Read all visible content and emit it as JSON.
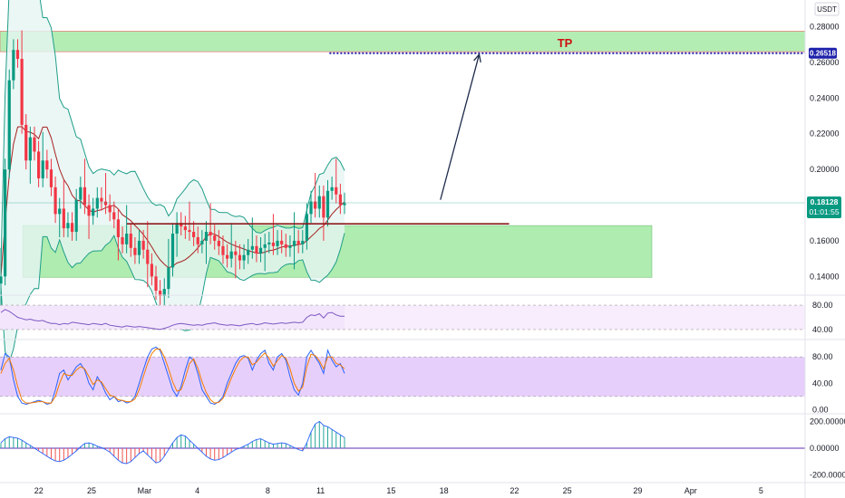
{
  "header": {
    "currency_badge": "USDT"
  },
  "price_tag": {
    "value": "0.18128",
    "countdown": "01:01:55",
    "color": "#089981"
  },
  "tp_tag": {
    "value": "0.26518",
    "color": "#1e22aa"
  },
  "annotations": {
    "tp_label": "TP",
    "tp_color": "#cc1111"
  },
  "colors": {
    "up": "#089981",
    "down": "#f23645",
    "zone_fill": "#9be79b",
    "bb_fill": "#e6f5f3",
    "bb_line": "#1f9e89",
    "ma_line": "#a52222",
    "rsi_line": "#7e57c2",
    "rsi_band": "#f3e6fc",
    "stoch_k": "#2962ff",
    "stoch_d": "#f57c00",
    "stoch_band": "#e3c7fa",
    "hist_up": "#26a69a",
    "hist_down": "#ef5350"
  },
  "time_axis": {
    "ticks": [
      {
        "label": "22",
        "day": 22
      },
      {
        "label": "25",
        "day": 25
      },
      {
        "label": "Mar",
        "day": 28
      },
      {
        "label": "4",
        "day": 31
      },
      {
        "label": "8",
        "day": 35
      },
      {
        "label": "11",
        "day": 38
      },
      {
        "label": "15",
        "day": 42
      },
      {
        "label": "18",
        "day": 45
      },
      {
        "label": "22",
        "day": 49
      },
      {
        "label": "25",
        "day": 52
      },
      {
        "label": "29",
        "day": 56
      },
      {
        "label": "Apr",
        "day": 59
      },
      {
        "label": "5",
        "day": 63
      }
    ]
  },
  "chart_data": [
    {
      "type": "candlestick",
      "pane": "price",
      "y_ticks": [
        "0.28000",
        "0.26000",
        "0.24000",
        "0.22000",
        "0.20000",
        "0.16000",
        "0.14000"
      ],
      "ylim": [
        0.13,
        0.295
      ],
      "x_range_days": [
        19.8,
        65.5
      ],
      "zones": [
        {
          "label": "TP",
          "from_day": 19.8,
          "to_day": 65.5,
          "low": 0.266,
          "high": 0.2775
        },
        {
          "label": "",
          "from_day": 21.1,
          "to_day": 56.8,
          "low": 0.1395,
          "high": 0.1685
        }
      ],
      "tp_level": 0.26518,
      "support_line": {
        "from_day": 27.0,
        "to_day": 48.7,
        "value": 0.1695
      },
      "arrow": {
        "from": {
          "day": 44.8,
          "value": 0.183
        },
        "to": {
          "day": 47.0,
          "value": 0.2645
        }
      },
      "closes": [
        0.14,
        0.2,
        0.25,
        0.267,
        0.262,
        0.225,
        0.205,
        0.218,
        0.21,
        0.195,
        0.205,
        0.2,
        0.19,
        0.175,
        0.178,
        0.167,
        0.17,
        0.165,
        0.183,
        0.19,
        0.18,
        0.174,
        0.178,
        0.184,
        0.182,
        0.18,
        0.176,
        0.172,
        0.162,
        0.158,
        0.164,
        0.156,
        0.152,
        0.16,
        0.155,
        0.147,
        0.14,
        0.132,
        0.129,
        0.133,
        0.145,
        0.164,
        0.17,
        0.168,
        0.166,
        0.165,
        0.162,
        0.158,
        0.16,
        0.165,
        0.163,
        0.16,
        0.157,
        0.152,
        0.15,
        0.154,
        0.152,
        0.149,
        0.152,
        0.155,
        0.157,
        0.153,
        0.156,
        0.158,
        0.159,
        0.157,
        0.16,
        0.158,
        0.156,
        0.157,
        0.16,
        0.158,
        0.16,
        0.175,
        0.182,
        0.178,
        0.185,
        0.173,
        0.188,
        0.19,
        0.186,
        0.18,
        0.181
      ],
      "price_line": 0.18128
    },
    {
      "type": "line",
      "pane": "rsi",
      "y_ticks": [
        "80.00",
        "40.00"
      ],
      "ylim": [
        25,
        95
      ],
      "band": [
        40,
        80
      ],
      "values": [
        68,
        73,
        70,
        65,
        60,
        58,
        56,
        57,
        55,
        54,
        55,
        52,
        50,
        50,
        48,
        50,
        49,
        52,
        51,
        50,
        49,
        48,
        50,
        49,
        48,
        50,
        47,
        46,
        45,
        44,
        46,
        45,
        44,
        45,
        44,
        43,
        42,
        41,
        40,
        42,
        44,
        47,
        49,
        50,
        49,
        48,
        47,
        48,
        47,
        49,
        50,
        51,
        49,
        48,
        47,
        48,
        47,
        46,
        48,
        49,
        50,
        48,
        49,
        51,
        50,
        49,
        50,
        51,
        50,
        51,
        52,
        51,
        52,
        60,
        64,
        63,
        66,
        59,
        67,
        68,
        64,
        62,
        62
      ]
    },
    {
      "type": "line",
      "pane": "stoch",
      "y_ticks": [
        "80.00",
        "40.00",
        "0.00"
      ],
      "ylim": [
        -5,
        105
      ],
      "band": [
        20,
        80
      ],
      "series": [
        {
          "name": "",
          "values": [
            60,
            85,
            80,
            45,
            20,
            10,
            8,
            10,
            12,
            14,
            12,
            8,
            10,
            30,
            55,
            60,
            45,
            55,
            65,
            70,
            60,
            40,
            30,
            50,
            40,
            25,
            15,
            20,
            12,
            14,
            10,
            12,
            20,
            40,
            60,
            80,
            92,
            95,
            90,
            70,
            50,
            30,
            20,
            35,
            60,
            80,
            75,
            55,
            30,
            20,
            10,
            8,
            12,
            20,
            40,
            55,
            70,
            80,
            82,
            78,
            60,
            75,
            85,
            90,
            70,
            60,
            80,
            85,
            75,
            50,
            30,
            22,
            40,
            80,
            90,
            80,
            70,
            55,
            90,
            75,
            65,
            70,
            55
          ]
        },
        {
          "name": "",
          "values": [
            55,
            70,
            78,
            60,
            35,
            15,
            10,
            10,
            11,
            12,
            12,
            10,
            10,
            20,
            40,
            55,
            52,
            52,
            60,
            65,
            62,
            50,
            38,
            45,
            42,
            32,
            22,
            20,
            15,
            14,
            12,
            12,
            16,
            30,
            50,
            70,
            85,
            92,
            92,
            80,
            62,
            42,
            28,
            30,
            48,
            70,
            77,
            63,
            42,
            26,
            15,
            10,
            11,
            17,
            32,
            48,
            62,
            74,
            80,
            80,
            68,
            72,
            80,
            86,
            78,
            66,
            74,
            82,
            78,
            62,
            40,
            28,
            34,
            65,
            84,
            82,
            74,
            62,
            80,
            80,
            70,
            68,
            62
          ]
        }
      ]
    },
    {
      "type": "bar",
      "pane": "macd",
      "y_ticks": [
        "200.00000",
        "0.00000",
        "-200.00000"
      ],
      "ylim": [
        -250,
        250
      ],
      "values": [
        40,
        70,
        85,
        80,
        75,
        60,
        40,
        20,
        0,
        -20,
        -40,
        -60,
        -80,
        -95,
        -100,
        -90,
        -70,
        -45,
        -20,
        10,
        35,
        40,
        30,
        15,
        5,
        -10,
        -30,
        -60,
        -90,
        -110,
        -115,
        -100,
        -70,
        -40,
        -20,
        -50,
        -80,
        -110,
        -100,
        -60,
        -10,
        40,
        80,
        100,
        90,
        60,
        30,
        0,
        -30,
        -60,
        -80,
        -90,
        -85,
        -70,
        -50,
        -30,
        -10,
        0,
        15,
        30,
        50,
        65,
        70,
        55,
        40,
        30,
        35,
        40,
        35,
        20,
        5,
        -10,
        -20,
        40,
        120,
        180,
        200,
        170,
        160,
        140,
        120,
        100,
        80
      ]
    }
  ]
}
